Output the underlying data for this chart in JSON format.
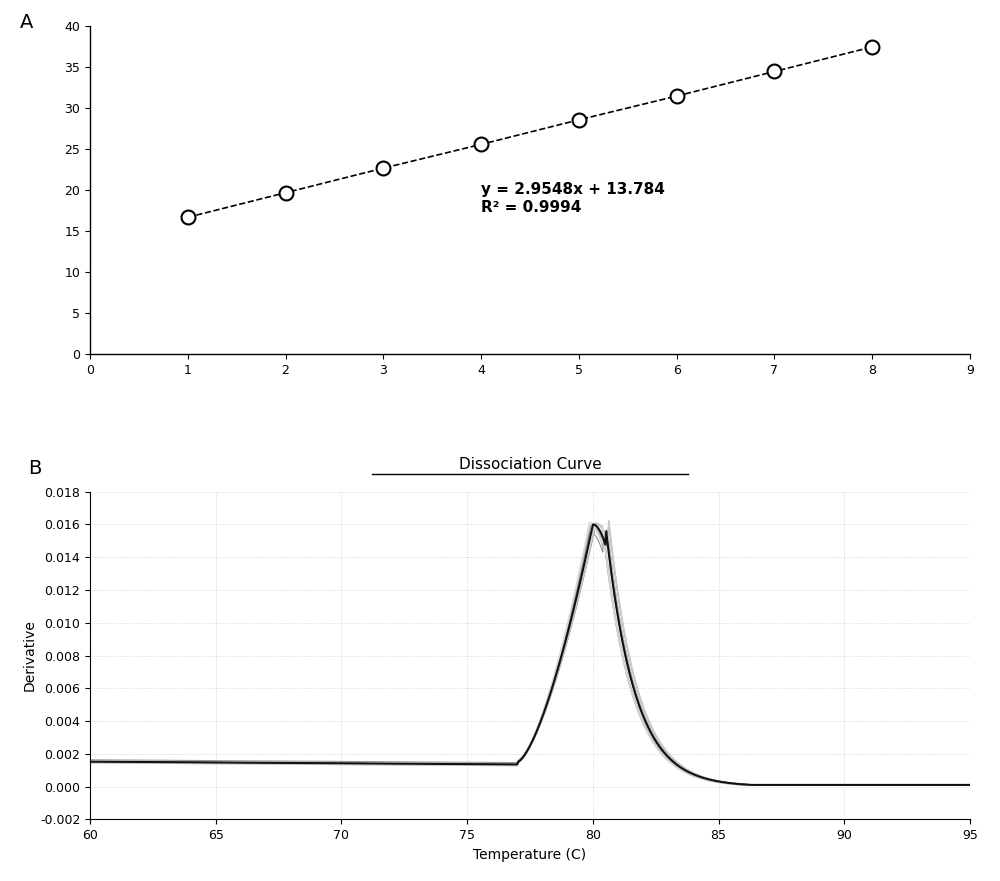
{
  "panel_A": {
    "x_data": [
      1,
      2,
      3,
      4,
      5,
      6,
      7,
      8
    ],
    "y_data": [
      16.7,
      19.7,
      22.7,
      25.6,
      28.6,
      31.5,
      34.5,
      37.5
    ],
    "xlim": [
      0,
      9
    ],
    "ylim": [
      0,
      40
    ],
    "xticks": [
      0,
      1,
      2,
      3,
      4,
      5,
      6,
      7,
      8,
      9
    ],
    "yticks": [
      0,
      5,
      10,
      15,
      20,
      25,
      30,
      35,
      40
    ],
    "equation": "y = 2.9548x + 13.784",
    "r_squared": "R² = 0.9994",
    "label": "A",
    "line_color": "#000000",
    "marker_color": "#ffffff",
    "marker_edge_color": "#000000"
  },
  "panel_B": {
    "title": "Dissociation Curve",
    "xlabel": "Temperature (C)",
    "ylabel": "Derivative",
    "xlim": [
      60,
      95
    ],
    "ylim": [
      -0.002,
      0.018
    ],
    "xticks": [
      60,
      65,
      70,
      75,
      80,
      85,
      90,
      95
    ],
    "yticks": [
      -0.002,
      0.0,
      0.002,
      0.004,
      0.006,
      0.008,
      0.01,
      0.012,
      0.014,
      0.016,
      0.018
    ],
    "ytick_labels": [
      "-0.002",
      "0.000",
      "0.002",
      "0.004",
      "0.006",
      "0.008",
      "0.010",
      "0.012",
      "0.014",
      "0.016",
      "0.018"
    ],
    "label": "B",
    "peak_temp": 80.0,
    "peak_value": 0.016,
    "baseline_value": 0.0015,
    "post_peak_value": 0.0001,
    "n_curves": 10,
    "line_color": "#333333",
    "grid_color": "#aaaaaa"
  },
  "background_color": "#ffffff",
  "font_color": "#000000"
}
